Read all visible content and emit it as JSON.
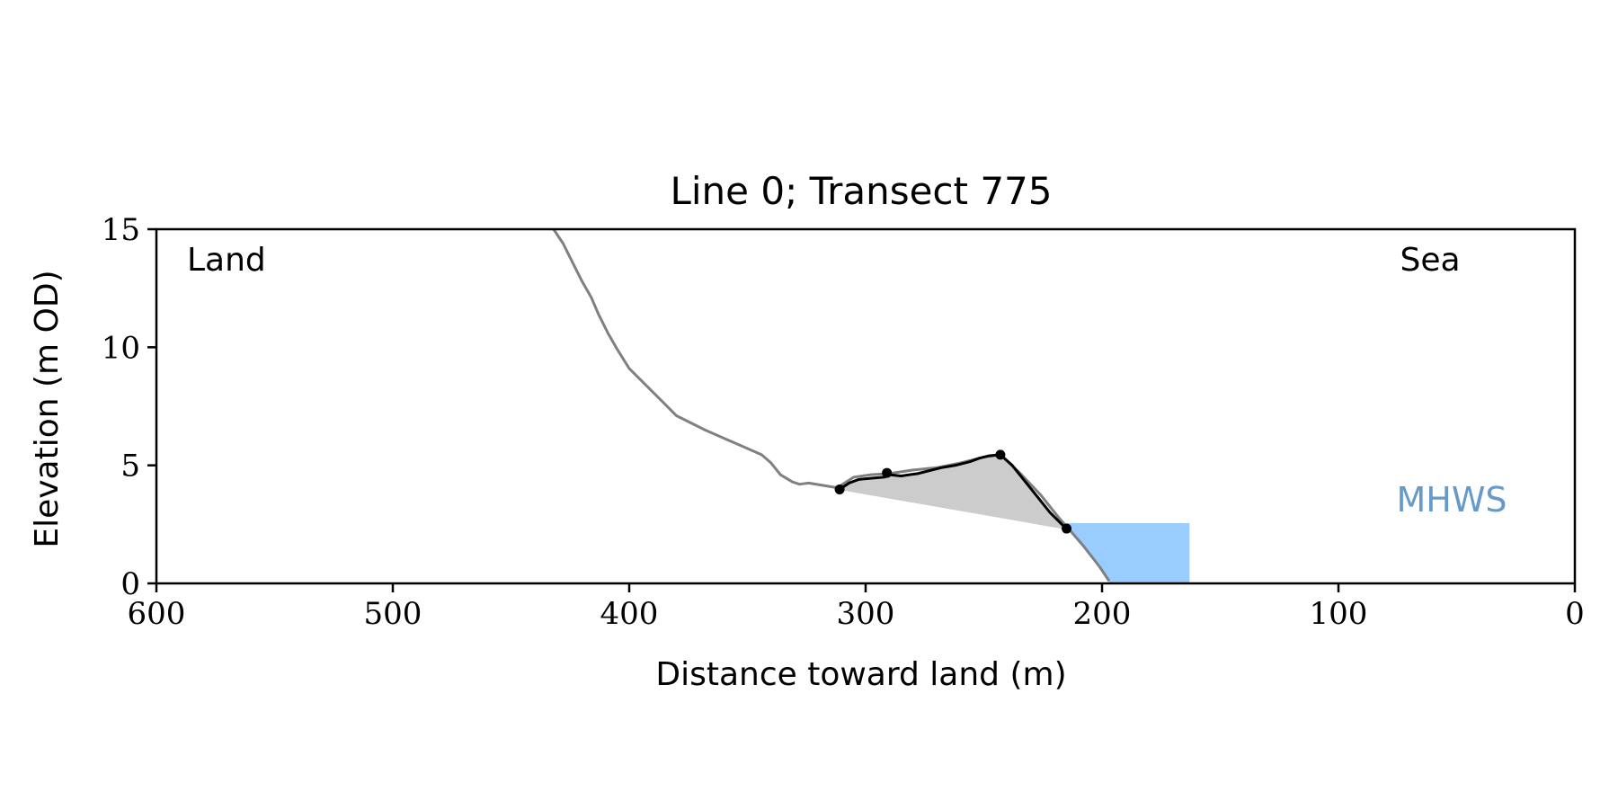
{
  "chart_data": {
    "type": "line",
    "title": "Line 0; Transect 775",
    "xlabel": "Distance toward land (m)",
    "ylabel": "Elevation (m OD)",
    "xlim": [
      600,
      0
    ],
    "ylim": [
      0,
      15
    ],
    "x_ticks": [
      600,
      500,
      400,
      300,
      200,
      100,
      0
    ],
    "y_ticks": [
      0,
      5,
      10,
      15
    ],
    "grid": false,
    "annotations": {
      "land": "Land",
      "sea": "Sea",
      "mhws": "MHWS"
    },
    "colors": {
      "profile": "#808080",
      "dune": "#000000",
      "dune_fill": "#cccccc",
      "mhws_fill": "#99ccff",
      "mhws_text": "#6699cc",
      "axis": "#000000"
    },
    "series": [
      {
        "x": [
          432,
          428,
          424,
          420,
          416,
          413,
          409,
          405,
          400,
          395,
          390,
          385,
          380,
          376,
          372,
          368,
          360,
          352,
          344,
          340,
          336,
          331,
          328,
          324,
          318,
          312,
          305,
          298,
          290,
          280,
          270,
          260,
          250,
          243,
          235,
          226,
          218,
          214,
          208,
          201,
          197
        ],
        "y": [
          15.0,
          14.4,
          13.6,
          12.8,
          12.1,
          11.4,
          10.6,
          9.9,
          9.1,
          8.6,
          8.1,
          7.6,
          7.1,
          6.9,
          6.7,
          6.5,
          6.15,
          5.8,
          5.45,
          5.1,
          4.6,
          4.3,
          4.2,
          4.25,
          4.15,
          4.05,
          4.5,
          4.6,
          4.65,
          4.8,
          4.9,
          5.1,
          5.35,
          5.45,
          4.7,
          3.75,
          2.75,
          2.3,
          1.6,
          0.7,
          0.1
        ]
      },
      {
        "x": [
          311,
          307,
          303,
          298,
          292,
          290,
          285,
          278,
          272,
          268,
          262,
          256,
          252,
          248,
          243,
          238,
          230,
          222,
          215
        ],
        "y": [
          3.98,
          4.25,
          4.4,
          4.45,
          4.5,
          4.6,
          4.55,
          4.65,
          4.8,
          4.9,
          5.0,
          5.15,
          5.3,
          5.4,
          5.45,
          5.0,
          4.0,
          3.0,
          2.3
        ]
      },
      {
        "x": [
          311,
          291,
          243,
          215
        ],
        "y": [
          3.98,
          4.68,
          5.45,
          2.32
        ]
      }
    ],
    "mhws_level": 2.55,
    "mhws_x_range": [
      215,
      163
    ]
  }
}
